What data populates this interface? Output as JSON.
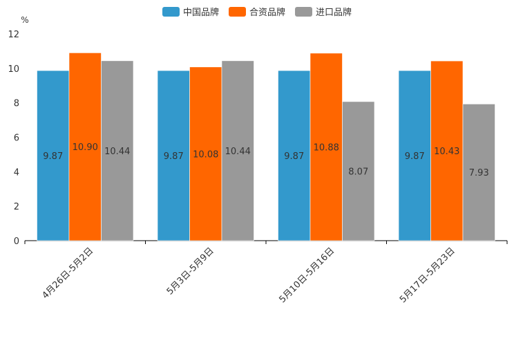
{
  "chart_data": {
    "type": "bar",
    "ylabel": "%",
    "ylim": [
      0,
      12
    ],
    "yticks": [
      0,
      2,
      4,
      6,
      8,
      10,
      12
    ],
    "categories": [
      "4月26日-5月2日",
      "5月3日-5月9日",
      "5月10日-5月16日",
      "5月17日-5月23日"
    ],
    "series": [
      {
        "name": "中国品牌",
        "color": "#3399cc",
        "values": [
          9.87,
          9.87,
          9.87,
          9.87
        ],
        "labels": [
          "9.87",
          "9.87",
          "9.87",
          "9.87"
        ]
      },
      {
        "name": "合资品牌",
        "color": "#ff6600",
        "values": [
          10.9,
          10.08,
          10.88,
          10.43
        ],
        "labels": [
          "10.90",
          "10.08",
          "10.88",
          "10.43"
        ]
      },
      {
        "name": "进口品牌",
        "color": "#999999",
        "values": [
          10.44,
          10.44,
          8.07,
          7.93
        ],
        "labels": [
          "10.44",
          "10.44",
          "8.07",
          "7.93"
        ]
      }
    ],
    "legend_position": "top-center",
    "grid": false
  }
}
